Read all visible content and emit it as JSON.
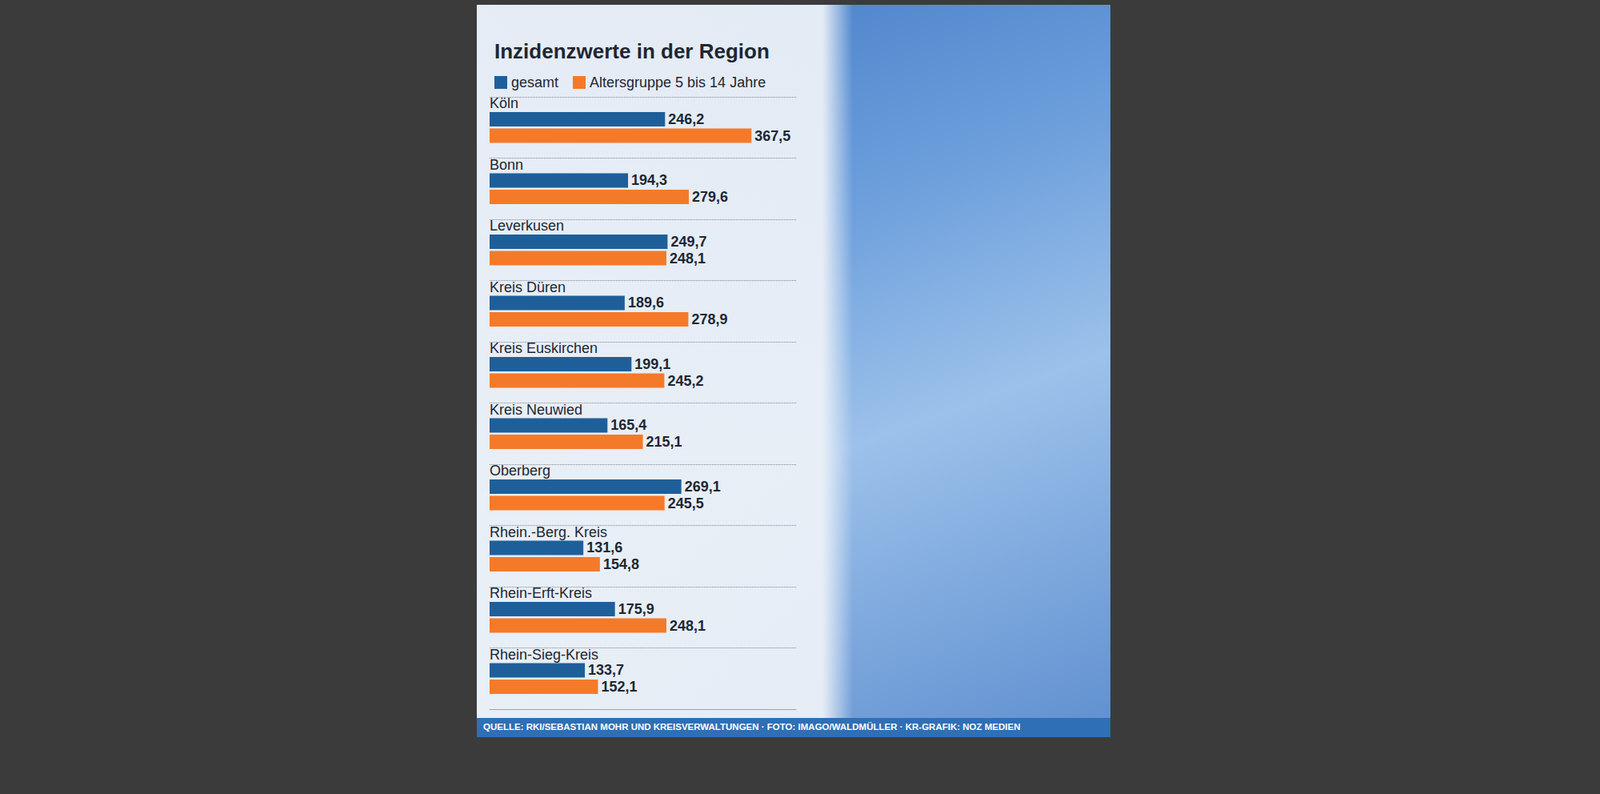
{
  "chart_data": {
    "type": "bar",
    "title": "Inzidenzwerte in der Region",
    "source": "QUELLE: RKI/SEBASTIAN MOHR UND KREISVERWALTUNGEN · FOTO: IMAGO/WALDMÜLLER · KR-GRAFIK: NOZ MEDIEN",
    "orientation": "horizontal",
    "categories": [
      "Köln",
      "Bonn",
      "Leverkusen",
      "Kreis Düren",
      "Kreis Euskirchen",
      "Kreis Neuwied",
      "Oberberg",
      "Rhein.-Berg. Kreis",
      "Rhein-Erft-Kreis",
      "Rhein-Sieg-Kreis"
    ],
    "series": [
      {
        "name": "gesamt",
        "color": "#1f5f99",
        "values": [
          246.2,
          194.3,
          249.7,
          189.6,
          199.1,
          165.4,
          269.1,
          131.6,
          175.9,
          133.7
        ],
        "value_labels": [
          "246,2",
          "194,3",
          "249,7",
          "189,6",
          "199,1",
          "165,4",
          "269,1",
          "131,6",
          "175,9",
          "133,7"
        ]
      },
      {
        "name": "Altersgruppe 5 bis 14 Jahre",
        "color": "#f47a2a",
        "values": [
          367.5,
          279.6,
          248.1,
          278.9,
          245.2,
          215.1,
          245.5,
          154.8,
          248.1,
          152.1
        ],
        "value_labels": [
          "367,5",
          "279,6",
          "248,1",
          "278,9",
          "245,2",
          "215,1",
          "245,5",
          "154,8",
          "248,1",
          "152,1"
        ]
      }
    ],
    "xlim": [
      0,
      430
    ],
    "tick_labels": false,
    "data_labels": true,
    "grid": true,
    "legend": "top-left"
  }
}
